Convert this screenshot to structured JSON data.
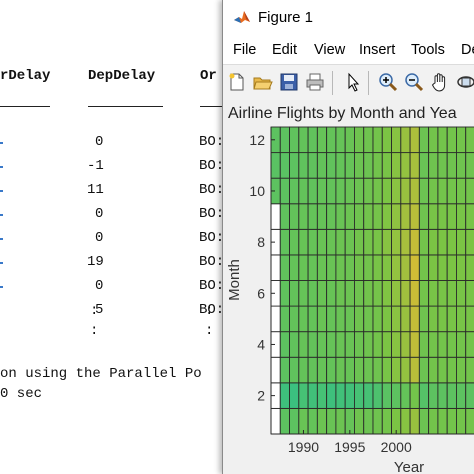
{
  "console": {
    "headers": [
      "rDelay",
      "DepDelay",
      "Or"
    ],
    "rows": [
      {
        "dep": "0",
        "origin": "BO:"
      },
      {
        "dep": "-1",
        "origin": "BO:"
      },
      {
        "dep": "11",
        "origin": "BO:"
      },
      {
        "dep": "0",
        "origin": "BO:"
      },
      {
        "dep": "0",
        "origin": "BO:"
      },
      {
        "dep": "19",
        "origin": "BO:"
      },
      {
        "dep": "0",
        "origin": "BO:"
      },
      {
        "dep": "5",
        "origin": "BO:"
      },
      {
        "dep": ":",
        "origin": ":"
      },
      {
        "dep": ":",
        "origin": ":"
      }
    ],
    "messages": [
      "on using the Parallel Po",
      "0 sec"
    ]
  },
  "figure": {
    "window_title": "Figure 1",
    "menu": [
      "File",
      "Edit",
      "View",
      "Insert",
      "Tools",
      "De"
    ],
    "toolbar_icons": [
      "new-figure-icon",
      "open-file-icon",
      "save-icon",
      "print-icon",
      "pointer-icon",
      "zoom-in-icon",
      "zoom-out-icon",
      "pan-hand-icon",
      "rotate-3d-icon"
    ],
    "colors": {
      "low": "#2fbf8a",
      "mid": "#7bc444",
      "high": "#f5b830"
    }
  },
  "chart_data": {
    "type": "heatmap",
    "title": "Airline Flights by Month and Yea",
    "xlabel": "Year",
    "ylabel": "Month",
    "x_ticks": [
      1990,
      1995,
      2000
    ],
    "y_ticks": [
      2,
      4,
      6,
      8,
      10,
      12
    ],
    "x_range": [
      1987,
      2008
    ],
    "y_range": [
      1,
      12
    ],
    "columns": 17,
    "first_year": 1988,
    "missing_cells": [
      {
        "year": 1987,
        "months": [
          1,
          2,
          3,
          4,
          5,
          6,
          7,
          8,
          9
        ]
      }
    ],
    "grid": [
      [
        0.3,
        0.3,
        0.38,
        0.35,
        0.4,
        0.38,
        0.4,
        0.36,
        0.42,
        0.4,
        0.42,
        0.45,
        0.5,
        0.55,
        0.62,
        0.4,
        0.45
      ],
      [
        0.1,
        0.08,
        0.15,
        0.12,
        0.15,
        0.1,
        0.12,
        0.12,
        0.15,
        0.15,
        0.2,
        0.28,
        0.3,
        0.35,
        0.45,
        0.25,
        0.3
      ],
      [
        0.3,
        0.32,
        0.35,
        0.34,
        0.36,
        0.35,
        0.38,
        0.37,
        0.4,
        0.4,
        0.42,
        0.48,
        0.55,
        0.6,
        0.75,
        0.4,
        0.45
      ],
      [
        0.3,
        0.33,
        0.36,
        0.34,
        0.36,
        0.36,
        0.38,
        0.38,
        0.4,
        0.42,
        0.45,
        0.5,
        0.55,
        0.62,
        0.78,
        0.42,
        0.45
      ],
      [
        0.32,
        0.34,
        0.36,
        0.35,
        0.38,
        0.36,
        0.38,
        0.38,
        0.42,
        0.42,
        0.45,
        0.5,
        0.56,
        0.62,
        0.8,
        0.42,
        0.48
      ],
      [
        0.32,
        0.34,
        0.36,
        0.35,
        0.38,
        0.37,
        0.4,
        0.4,
        0.42,
        0.44,
        0.46,
        0.52,
        0.58,
        0.65,
        0.82,
        0.45,
        0.48
      ],
      [
        0.33,
        0.35,
        0.37,
        0.36,
        0.38,
        0.38,
        0.4,
        0.4,
        0.44,
        0.44,
        0.48,
        0.52,
        0.6,
        0.66,
        0.85,
        0.45,
        0.5
      ],
      [
        0.33,
        0.35,
        0.37,
        0.36,
        0.38,
        0.38,
        0.4,
        0.4,
        0.44,
        0.46,
        0.48,
        0.55,
        0.6,
        0.68,
        0.8,
        0.45,
        0.5
      ],
      [
        0.32,
        0.34,
        0.36,
        0.35,
        0.36,
        0.36,
        0.38,
        0.4,
        0.42,
        0.44,
        0.46,
        0.52,
        0.58,
        0.66,
        0.75,
        0.42,
        0.48
      ],
      [
        0.3,
        0.32,
        0.34,
        0.33,
        0.35,
        0.34,
        0.36,
        0.38,
        0.4,
        0.42,
        0.45,
        0.5,
        0.56,
        0.62,
        0.7,
        0.4,
        0.45
      ],
      [
        0.28,
        0.3,
        0.32,
        0.32,
        0.34,
        0.33,
        0.35,
        0.36,
        0.4,
        0.4,
        0.44,
        0.48,
        0.55,
        0.6,
        0.68,
        0.38,
        0.42
      ],
      [
        0.3,
        0.32,
        0.34,
        0.33,
        0.36,
        0.35,
        0.36,
        0.38,
        0.42,
        0.42,
        0.45,
        0.5,
        0.55,
        0.62,
        0.7,
        0.4,
        0.45
      ]
    ]
  }
}
